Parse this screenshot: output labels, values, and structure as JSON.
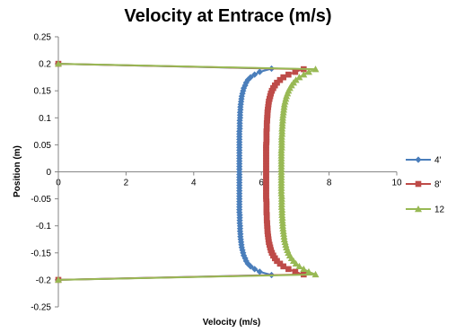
{
  "chart_data": {
    "type": "scatter",
    "title": "Velocity at Entrace (m/s)",
    "xlabel": "Velocity (m/s)",
    "ylabel": "Position (m)",
    "xlim": [
      0,
      10
    ],
    "ylim": [
      -0.25,
      0.25
    ],
    "x_ticks": [
      0,
      2,
      4,
      6,
      8,
      10
    ],
    "y_ticks": [
      0.25,
      0.2,
      0.15,
      0.1,
      0.05,
      0,
      -0.05,
      -0.1,
      -0.15,
      -0.2,
      -0.25
    ],
    "grid": false,
    "legend_position": "right",
    "series": [
      {
        "name": "4'",
        "color": "#4A7EBB",
        "marker": "diamond",
        "points": [
          [
            0,
            0.2
          ],
          [
            6.3,
            0.191
          ],
          [
            5.95,
            0.185
          ],
          [
            5.8,
            0.18
          ],
          [
            5.68,
            0.175
          ],
          [
            5.6,
            0.17
          ],
          [
            5.55,
            0.165
          ],
          [
            5.52,
            0.16
          ],
          [
            5.48,
            0.155
          ],
          [
            5.46,
            0.15
          ],
          [
            5.44,
            0.145
          ],
          [
            5.42,
            0.14
          ],
          [
            5.41,
            0.135
          ],
          [
            5.4,
            0.13
          ],
          [
            5.39,
            0.125
          ],
          [
            5.38,
            0.12
          ],
          [
            5.38,
            0.115
          ],
          [
            5.37,
            0.11
          ],
          [
            5.37,
            0.105
          ],
          [
            5.37,
            0.1
          ],
          [
            5.36,
            0.095
          ],
          [
            5.36,
            0.09
          ],
          [
            5.36,
            0.085
          ],
          [
            5.36,
            0.08
          ],
          [
            5.35,
            0.075
          ],
          [
            5.35,
            0.07
          ],
          [
            5.35,
            0.065
          ],
          [
            5.35,
            0.06
          ],
          [
            5.35,
            0.055
          ],
          [
            5.35,
            0.05
          ],
          [
            5.35,
            0.045
          ],
          [
            5.35,
            0.04
          ],
          [
            5.35,
            0.035
          ],
          [
            5.35,
            0.03
          ],
          [
            5.35,
            0.025
          ],
          [
            5.35,
            0.02
          ],
          [
            5.35,
            0.015
          ],
          [
            5.35,
            0.01
          ],
          [
            5.35,
            0.005
          ],
          [
            5.35,
            0
          ],
          [
            5.35,
            -0.005
          ],
          [
            5.35,
            -0.01
          ],
          [
            5.35,
            -0.015
          ],
          [
            5.35,
            -0.02
          ],
          [
            5.35,
            -0.025
          ],
          [
            5.35,
            -0.03
          ],
          [
            5.35,
            -0.035
          ],
          [
            5.35,
            -0.04
          ],
          [
            5.35,
            -0.045
          ],
          [
            5.35,
            -0.05
          ],
          [
            5.35,
            -0.055
          ],
          [
            5.35,
            -0.06
          ],
          [
            5.35,
            -0.065
          ],
          [
            5.35,
            -0.07
          ],
          [
            5.35,
            -0.075
          ],
          [
            5.36,
            -0.08
          ],
          [
            5.36,
            -0.085
          ],
          [
            5.36,
            -0.09
          ],
          [
            5.36,
            -0.095
          ],
          [
            5.37,
            -0.1
          ],
          [
            5.37,
            -0.105
          ],
          [
            5.37,
            -0.11
          ],
          [
            5.38,
            -0.115
          ],
          [
            5.38,
            -0.12
          ],
          [
            5.39,
            -0.125
          ],
          [
            5.4,
            -0.13
          ],
          [
            5.41,
            -0.135
          ],
          [
            5.42,
            -0.14
          ],
          [
            5.44,
            -0.145
          ],
          [
            5.46,
            -0.15
          ],
          [
            5.48,
            -0.155
          ],
          [
            5.52,
            -0.16
          ],
          [
            5.55,
            -0.165
          ],
          [
            5.6,
            -0.17
          ],
          [
            5.68,
            -0.175
          ],
          [
            5.8,
            -0.18
          ],
          [
            5.95,
            -0.185
          ],
          [
            6.3,
            -0.191
          ],
          [
            0,
            -0.2
          ]
        ]
      },
      {
        "name": "8'",
        "color": "#BE4B48",
        "marker": "square",
        "points": [
          [
            0,
            0.2
          ],
          [
            7.25,
            0.19
          ],
          [
            7.0,
            0.185
          ],
          [
            6.8,
            0.18
          ],
          [
            6.65,
            0.175
          ],
          [
            6.55,
            0.17
          ],
          [
            6.46,
            0.165
          ],
          [
            6.4,
            0.16
          ],
          [
            6.35,
            0.155
          ],
          [
            6.31,
            0.15
          ],
          [
            6.28,
            0.145
          ],
          [
            6.26,
            0.14
          ],
          [
            6.24,
            0.135
          ],
          [
            6.22,
            0.13
          ],
          [
            6.21,
            0.125
          ],
          [
            6.2,
            0.12
          ],
          [
            6.19,
            0.115
          ],
          [
            6.18,
            0.11
          ],
          [
            6.18,
            0.105
          ],
          [
            6.17,
            0.1
          ],
          [
            6.17,
            0.095
          ],
          [
            6.16,
            0.09
          ],
          [
            6.16,
            0.085
          ],
          [
            6.16,
            0.08
          ],
          [
            6.15,
            0.075
          ],
          [
            6.15,
            0.07
          ],
          [
            6.15,
            0.065
          ],
          [
            6.15,
            0.06
          ],
          [
            6.15,
            0.055
          ],
          [
            6.14,
            0.05
          ],
          [
            6.14,
            0.045
          ],
          [
            6.14,
            0.04
          ],
          [
            6.14,
            0.035
          ],
          [
            6.14,
            0.03
          ],
          [
            6.14,
            0.025
          ],
          [
            6.14,
            0.02
          ],
          [
            6.14,
            0.015
          ],
          [
            6.14,
            0.01
          ],
          [
            6.14,
            0.005
          ],
          [
            6.14,
            0
          ],
          [
            6.14,
            -0.005
          ],
          [
            6.14,
            -0.01
          ],
          [
            6.14,
            -0.015
          ],
          [
            6.14,
            -0.02
          ],
          [
            6.14,
            -0.025
          ],
          [
            6.14,
            -0.03
          ],
          [
            6.14,
            -0.035
          ],
          [
            6.14,
            -0.04
          ],
          [
            6.14,
            -0.045
          ],
          [
            6.14,
            -0.05
          ],
          [
            6.15,
            -0.055
          ],
          [
            6.15,
            -0.06
          ],
          [
            6.15,
            -0.065
          ],
          [
            6.15,
            -0.07
          ],
          [
            6.15,
            -0.075
          ],
          [
            6.16,
            -0.08
          ],
          [
            6.16,
            -0.085
          ],
          [
            6.16,
            -0.09
          ],
          [
            6.17,
            -0.095
          ],
          [
            6.17,
            -0.1
          ],
          [
            6.18,
            -0.105
          ],
          [
            6.18,
            -0.11
          ],
          [
            6.19,
            -0.115
          ],
          [
            6.2,
            -0.12
          ],
          [
            6.21,
            -0.125
          ],
          [
            6.22,
            -0.13
          ],
          [
            6.24,
            -0.135
          ],
          [
            6.26,
            -0.14
          ],
          [
            6.28,
            -0.145
          ],
          [
            6.31,
            -0.15
          ],
          [
            6.35,
            -0.155
          ],
          [
            6.4,
            -0.16
          ],
          [
            6.46,
            -0.165
          ],
          [
            6.55,
            -0.17
          ],
          [
            6.65,
            -0.175
          ],
          [
            6.8,
            -0.18
          ],
          [
            7.0,
            -0.185
          ],
          [
            7.25,
            -0.19
          ],
          [
            0,
            -0.2
          ]
        ]
      },
      {
        "name": "12",
        "color": "#98B954",
        "marker": "triangle",
        "points": [
          [
            0,
            0.2
          ],
          [
            7.6,
            0.19
          ],
          [
            7.4,
            0.185
          ],
          [
            7.25,
            0.18
          ],
          [
            7.12,
            0.175
          ],
          [
            7.02,
            0.17
          ],
          [
            6.95,
            0.165
          ],
          [
            6.89,
            0.16
          ],
          [
            6.84,
            0.155
          ],
          [
            6.8,
            0.15
          ],
          [
            6.77,
            0.145
          ],
          [
            6.74,
            0.14
          ],
          [
            6.72,
            0.135
          ],
          [
            6.7,
            0.13
          ],
          [
            6.68,
            0.125
          ],
          [
            6.67,
            0.12
          ],
          [
            6.66,
            0.115
          ],
          [
            6.65,
            0.11
          ],
          [
            6.64,
            0.105
          ],
          [
            6.63,
            0.1
          ],
          [
            6.63,
            0.095
          ],
          [
            6.62,
            0.09
          ],
          [
            6.62,
            0.085
          ],
          [
            6.61,
            0.08
          ],
          [
            6.61,
            0.075
          ],
          [
            6.61,
            0.07
          ],
          [
            6.6,
            0.065
          ],
          [
            6.6,
            0.06
          ],
          [
            6.6,
            0.055
          ],
          [
            6.6,
            0.05
          ],
          [
            6.6,
            0.045
          ],
          [
            6.59,
            0.04
          ],
          [
            6.59,
            0.035
          ],
          [
            6.59,
            0.03
          ],
          [
            6.59,
            0.025
          ],
          [
            6.59,
            0.02
          ],
          [
            6.59,
            0.015
          ],
          [
            6.59,
            0.01
          ],
          [
            6.59,
            0.005
          ],
          [
            6.59,
            0
          ],
          [
            6.59,
            -0.005
          ],
          [
            6.59,
            -0.01
          ],
          [
            6.59,
            -0.015
          ],
          [
            6.59,
            -0.02
          ],
          [
            6.59,
            -0.025
          ],
          [
            6.59,
            -0.03
          ],
          [
            6.59,
            -0.035
          ],
          [
            6.59,
            -0.04
          ],
          [
            6.6,
            -0.045
          ],
          [
            6.6,
            -0.05
          ],
          [
            6.6,
            -0.055
          ],
          [
            6.6,
            -0.06
          ],
          [
            6.6,
            -0.065
          ],
          [
            6.61,
            -0.07
          ],
          [
            6.61,
            -0.075
          ],
          [
            6.61,
            -0.08
          ],
          [
            6.62,
            -0.085
          ],
          [
            6.62,
            -0.09
          ],
          [
            6.63,
            -0.095
          ],
          [
            6.63,
            -0.1
          ],
          [
            6.64,
            -0.105
          ],
          [
            6.65,
            -0.11
          ],
          [
            6.66,
            -0.115
          ],
          [
            6.67,
            -0.12
          ],
          [
            6.68,
            -0.125
          ],
          [
            6.7,
            -0.13
          ],
          [
            6.72,
            -0.135
          ],
          [
            6.74,
            -0.14
          ],
          [
            6.77,
            -0.145
          ],
          [
            6.8,
            -0.15
          ],
          [
            6.84,
            -0.155
          ],
          [
            6.89,
            -0.16
          ],
          [
            6.95,
            -0.165
          ],
          [
            7.02,
            -0.17
          ],
          [
            7.12,
            -0.175
          ],
          [
            7.25,
            -0.18
          ],
          [
            7.4,
            -0.185
          ],
          [
            7.6,
            -0.19
          ],
          [
            0,
            -0.2
          ]
        ]
      }
    ]
  }
}
